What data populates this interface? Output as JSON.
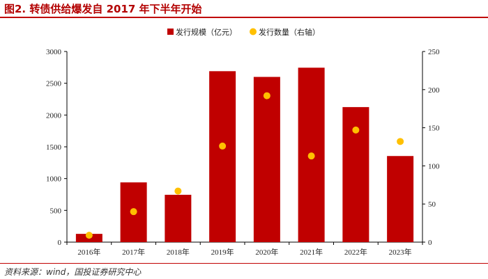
{
  "title": "图2. 转债供给爆发自 2017 年下半年开始",
  "source": "资料来源：wind，国投证券研究中心",
  "colors": {
    "bar": "#c00000",
    "dot": "#ffc000",
    "rule": "#c00000"
  },
  "chart_data": {
    "type": "bar",
    "categories": [
      "2016年",
      "2017年",
      "2018年",
      "2019年",
      "2020年",
      "2021年",
      "2022年",
      "2023年"
    ],
    "series": [
      {
        "name": "发行规模（亿元）",
        "type": "bar",
        "axis": "left",
        "values": [
          130,
          940,
          745,
          2690,
          2600,
          2745,
          2125,
          1355
        ]
      },
      {
        "name": "发行数量（右轴）",
        "type": "scatter",
        "axis": "right",
        "values": [
          9,
          40,
          67,
          126,
          192,
          113,
          147,
          132
        ]
      }
    ],
    "y_left": {
      "min": 0,
      "max": 3000,
      "ticks": [
        "0",
        "500",
        "1000",
        "1500",
        "2000",
        "2500",
        "3000"
      ]
    },
    "y_right": {
      "min": 0,
      "max": 250,
      "ticks": [
        "0",
        "50",
        "100",
        "150",
        "200",
        "250"
      ]
    },
    "legend": "top-center",
    "grid": false
  }
}
